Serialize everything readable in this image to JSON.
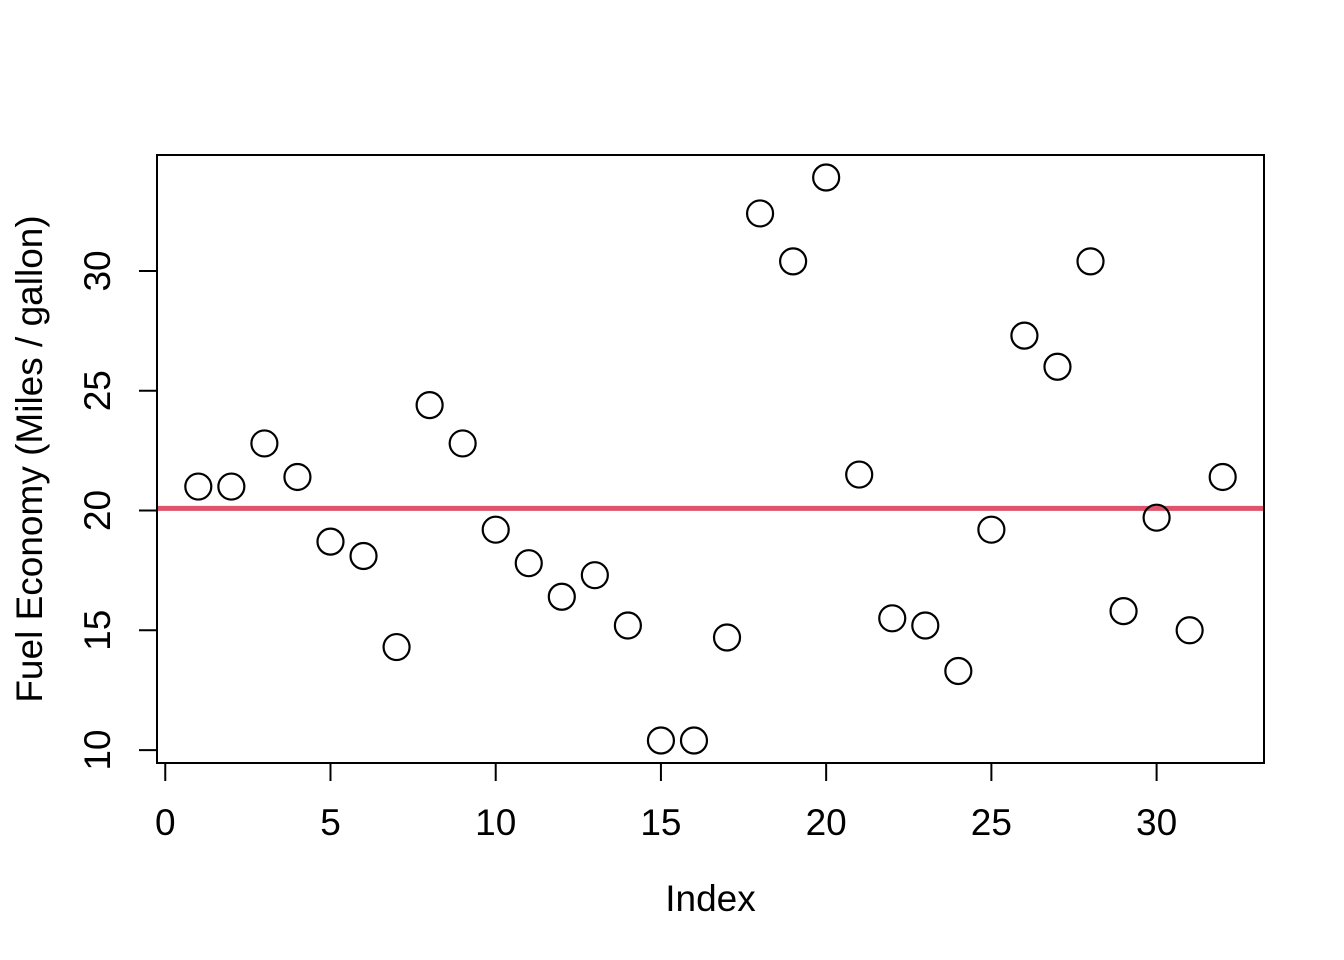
{
  "chart_data": {
    "type": "scatter",
    "title": "",
    "xlabel": "Index",
    "ylabel": "Fuel Economy (Miles / gallon)",
    "x": [
      1,
      2,
      3,
      4,
      5,
      6,
      7,
      8,
      9,
      10,
      11,
      12,
      13,
      14,
      15,
      16,
      17,
      18,
      19,
      20,
      21,
      22,
      23,
      24,
      25,
      26,
      27,
      28,
      29,
      30,
      31,
      32
    ],
    "y": [
      21.0,
      21.0,
      22.8,
      21.4,
      18.7,
      18.1,
      14.3,
      24.4,
      22.8,
      19.2,
      17.8,
      16.4,
      17.3,
      15.2,
      10.4,
      10.4,
      14.7,
      32.4,
      30.4,
      33.9,
      21.5,
      15.5,
      15.2,
      13.3,
      19.2,
      27.3,
      26.0,
      30.4,
      15.8,
      19.7,
      15.0,
      21.4
    ],
    "x_ticks": [
      0,
      5,
      10,
      15,
      20,
      25,
      30
    ],
    "y_ticks": [
      10,
      15,
      20,
      25,
      30
    ],
    "xlim": [
      -0.25,
      33.25
    ],
    "ylim": [
      9.46,
      34.84
    ],
    "grid": false,
    "legend_position": "none",
    "marker": {
      "shape": "open-circle",
      "stroke_color": "#000000"
    },
    "reference_line": {
      "orientation": "horizontal",
      "value": 20.09,
      "color": "#DF536B"
    },
    "colors": {
      "background": "#FFFFFF",
      "frame": "#000000",
      "points": "#000000",
      "reference_line": "#DF536B"
    }
  }
}
